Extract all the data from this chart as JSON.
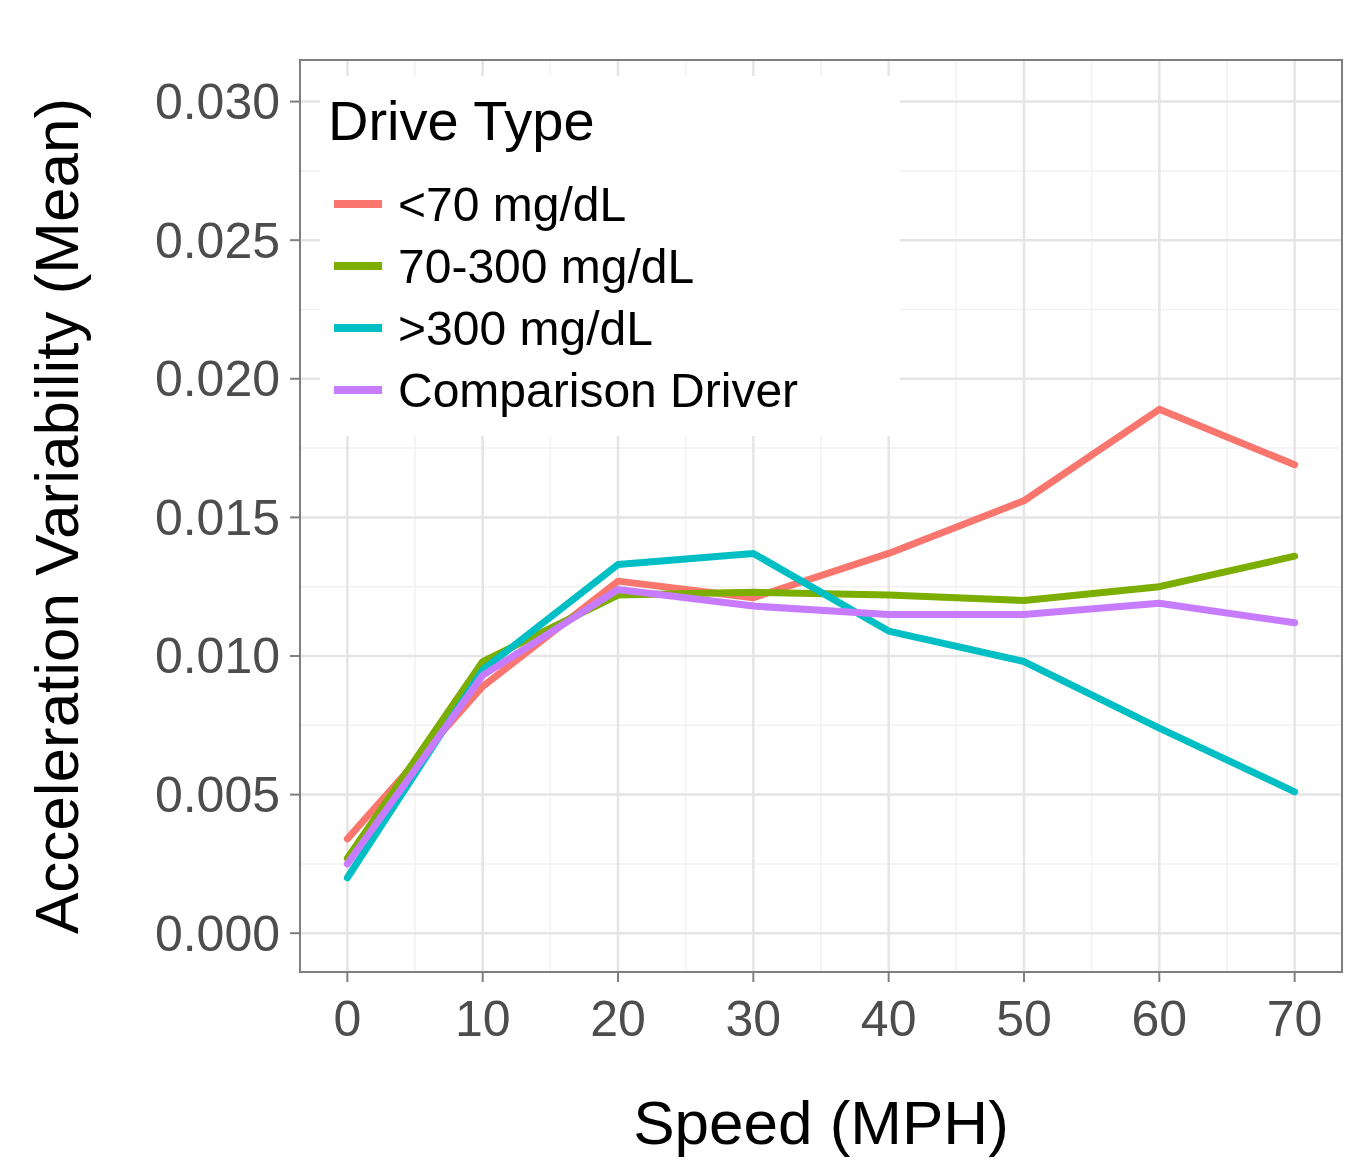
{
  "chart_data": {
    "type": "line",
    "xlabel": "Speed (MPH)",
    "ylabel": "Acceleration Variability (Mean)",
    "legend_title": "Drive Type",
    "legend": "top left",
    "grid": true,
    "marker": "none",
    "line_style": "solid",
    "x": [
      0,
      10,
      20,
      30,
      40,
      50,
      60,
      70
    ],
    "xlim": [
      -3.5,
      73.5
    ],
    "xticks": [
      0,
      10,
      20,
      30,
      40,
      50,
      60,
      70
    ],
    "ylim": [
      -0.0014,
      0.0315
    ],
    "yticks": [
      {
        "value": 0,
        "label": "0.000"
      },
      {
        "value": 0.005,
        "label": "0.005"
      },
      {
        "value": 0.01,
        "label": "0.010"
      },
      {
        "value": 0.015,
        "label": "0.015"
      },
      {
        "value": 0.02,
        "label": "0.020"
      },
      {
        "value": 0.025,
        "label": "0.025"
      },
      {
        "value": 0.03,
        "label": "0.030"
      }
    ],
    "series": [
      {
        "name": "<70 mg/dL",
        "color": "#f8766d",
        "values": [
          0.0034,
          0.0089,
          0.0127,
          0.0121,
          0.0137,
          0.0156,
          0.0189,
          0.0169
        ]
      },
      {
        "name": "70-300 mg/dL",
        "color": "#7cae00",
        "values": [
          0.0027,
          0.0098,
          0.0122,
          0.0123,
          0.0122,
          0.012,
          0.0125,
          0.0136
        ]
      },
      {
        "name": ">300 mg/dL",
        "color": "#00bfc4",
        "values": [
          0.002,
          0.0095,
          0.0133,
          0.0137,
          0.0109,
          0.0098,
          0.0074,
          0.0051
        ]
      },
      {
        "name": "Comparison Driver",
        "color": "#c77cff",
        "values": [
          0.0025,
          0.0093,
          0.0124,
          0.0118,
          0.0115,
          0.0115,
          0.0119,
          0.0112
        ]
      }
    ]
  }
}
